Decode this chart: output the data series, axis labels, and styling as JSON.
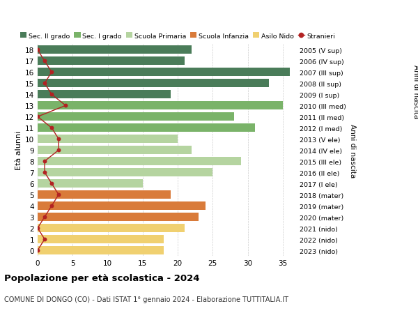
{
  "ages": [
    18,
    17,
    16,
    15,
    14,
    13,
    12,
    11,
    10,
    9,
    8,
    7,
    6,
    5,
    4,
    3,
    2,
    1,
    0
  ],
  "years": [
    "2005 (V sup)",
    "2006 (IV sup)",
    "2007 (III sup)",
    "2008 (II sup)",
    "2009 (I sup)",
    "2010 (III med)",
    "2011 (II med)",
    "2012 (I med)",
    "2013 (V ele)",
    "2014 (IV ele)",
    "2015 (III ele)",
    "2016 (II ele)",
    "2017 (I ele)",
    "2018 (mater)",
    "2019 (mater)",
    "2020 (mater)",
    "2021 (nido)",
    "2022 (nido)",
    "2023 (nido)"
  ],
  "values": [
    22,
    21,
    36,
    33,
    19,
    35,
    28,
    31,
    20,
    22,
    29,
    25,
    15,
    19,
    24,
    23,
    21,
    18,
    18
  ],
  "stranieri": [
    0,
    1,
    2,
    1,
    2,
    4,
    0,
    2,
    3,
    3,
    1,
    1,
    2,
    3,
    2,
    1,
    0,
    1,
    0
  ],
  "bar_colors": [
    "#4a7c59",
    "#4a7c59",
    "#4a7c59",
    "#4a7c59",
    "#4a7c59",
    "#7ab369",
    "#7ab369",
    "#7ab369",
    "#b5d4a0",
    "#b5d4a0",
    "#b5d4a0",
    "#b5d4a0",
    "#b5d4a0",
    "#d97b3a",
    "#d97b3a",
    "#d97b3a",
    "#f0d070",
    "#f0d070",
    "#f0d070"
  ],
  "legend_labels": [
    "Sec. II grado",
    "Sec. I grado",
    "Scuola Primaria",
    "Scuola Infanzia",
    "Asilo Nido",
    "Stranieri"
  ],
  "legend_colors": [
    "#4a7c59",
    "#7ab369",
    "#b5d4a0",
    "#d97b3a",
    "#f0d070",
    "#b22222"
  ],
  "title": "Popolazione per età scolastica - 2024",
  "subtitle": "COMUNE DI DONGO (CO) - Dati ISTAT 1° gennaio 2024 - Elaborazione TUTTITALIA.IT",
  "right_ylabel": "Anni di nascita",
  "left_ylabel": "Età alunni",
  "xlim": [
    0,
    37
  ],
  "stranieri_color": "#b22222",
  "bg_color": "#ffffff",
  "grid_color": "#cccccc"
}
